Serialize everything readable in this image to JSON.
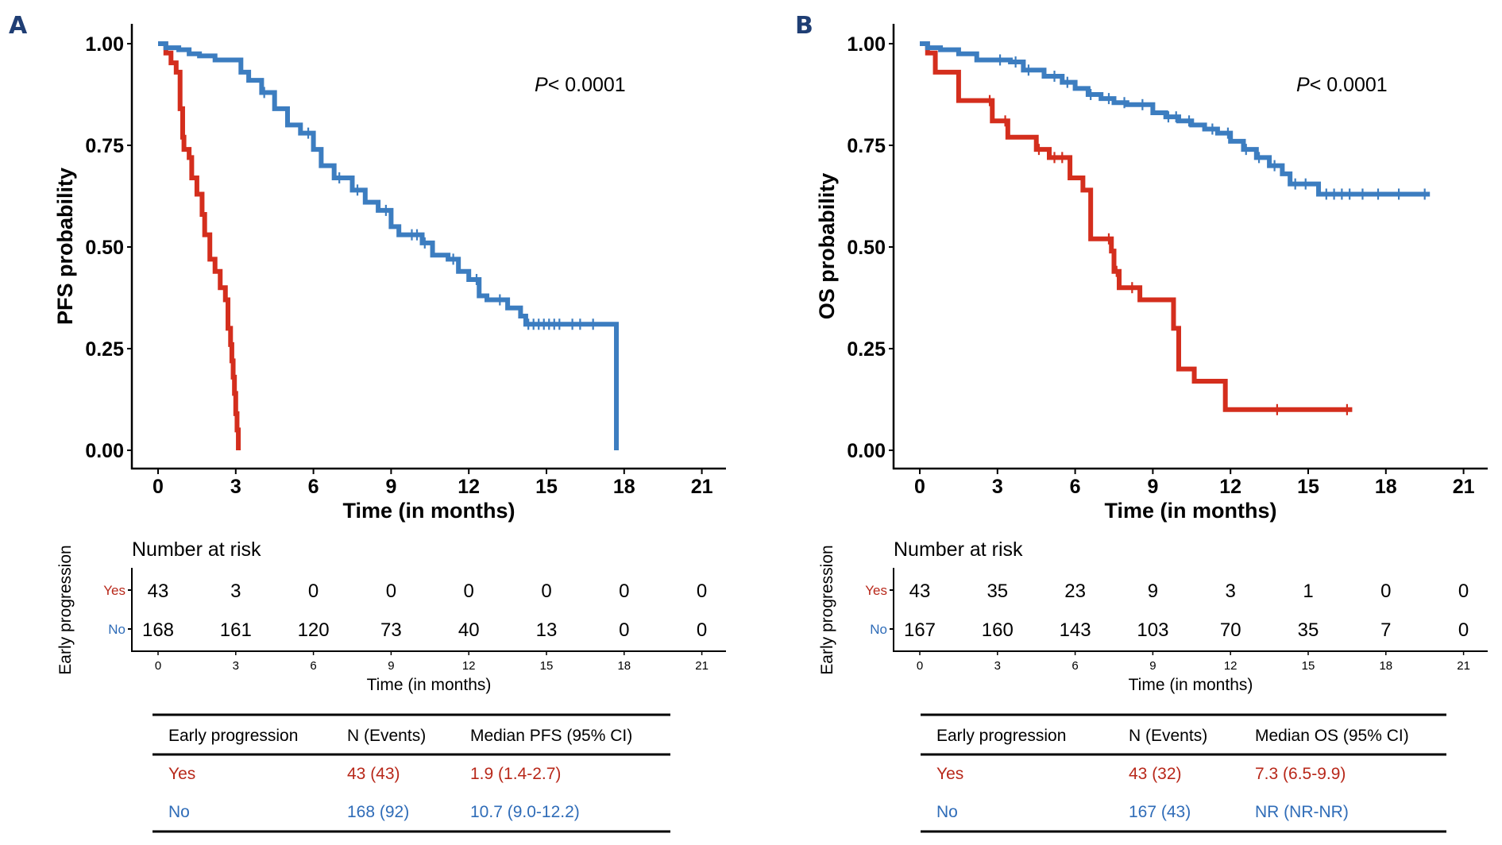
{
  "colors": {
    "yes": "#d42e1d",
    "no": "#3c7dc0",
    "yes_text": "#b8281a",
    "no_text": "#2f6cb8",
    "panel_letter": "#1f3e74"
  },
  "chart_data": [
    {
      "type": "line",
      "panel": "A",
      "title": "",
      "xlabel": "Time (in months)",
      "ylabel": "PFS probability",
      "xlim": [
        0,
        21
      ],
      "ylim": [
        0,
        1
      ],
      "xticks": [
        "0",
        "3",
        "6",
        "9",
        "12",
        "15",
        "18",
        "21"
      ],
      "yticks": [
        "0.00",
        "0.25",
        "0.50",
        "0.75",
        "1.00"
      ],
      "annotation": "P< 0.0001",
      "grid": false,
      "series": [
        {
          "name": "Yes",
          "step": true,
          "x": [
            0,
            0.3,
            0.5,
            0.7,
            0.85,
            0.95,
            1.0,
            1.2,
            1.3,
            1.5,
            1.7,
            1.8,
            2.0,
            2.2,
            2.4,
            2.6,
            2.7,
            2.8,
            2.85,
            2.9,
            2.95,
            3.0,
            3.05,
            3.1
          ],
          "y": [
            1.0,
            0.977,
            0.953,
            0.93,
            0.84,
            0.77,
            0.74,
            0.72,
            0.67,
            0.63,
            0.58,
            0.53,
            0.47,
            0.44,
            0.4,
            0.37,
            0.3,
            0.26,
            0.22,
            0.18,
            0.14,
            0.09,
            0.05,
            0.0
          ]
        },
        {
          "name": "No",
          "step": true,
          "x": [
            0,
            0.3,
            0.8,
            1.2,
            1.6,
            2.2,
            2.8,
            3.2,
            3.5,
            4.0,
            4.5,
            5.0,
            5.5,
            6.0,
            6.3,
            6.8,
            7.5,
            8.0,
            8.5,
            9.0,
            9.3,
            10.2,
            10.6,
            11.2,
            11.6,
            12.0,
            12.4,
            12.7,
            13.5,
            14.0,
            14.2,
            17.7,
            17.7
          ],
          "y": [
            1.0,
            0.99,
            0.985,
            0.975,
            0.97,
            0.96,
            0.96,
            0.93,
            0.91,
            0.88,
            0.84,
            0.8,
            0.78,
            0.74,
            0.7,
            0.67,
            0.64,
            0.61,
            0.59,
            0.55,
            0.53,
            0.51,
            0.48,
            0.47,
            0.44,
            0.42,
            0.38,
            0.37,
            0.35,
            0.33,
            0.31,
            0.31,
            0.0
          ]
        }
      ],
      "censor_marks": {
        "No": [
          4.1,
          5.8,
          7.0,
          7.7,
          8.8,
          9.8,
          10.0,
          10.3,
          11.4,
          12.3,
          13.2,
          14.3,
          14.5,
          14.7,
          14.9,
          15.1,
          15.3,
          15.5,
          16.0,
          16.3,
          16.8
        ]
      },
      "risk_table": {
        "title": "Number at risk",
        "ylabel": "Early progression",
        "xlabel": "Time (in months)",
        "time_points": [
          "0",
          "3",
          "6",
          "9",
          "12",
          "15",
          "18",
          "21"
        ],
        "rows": [
          {
            "label": "Yes",
            "values": [
              "43",
              "3",
              "0",
              "0",
              "0",
              "0",
              "0",
              "0"
            ]
          },
          {
            "label": "No",
            "values": [
              "168",
              "161",
              "120",
              "73",
              "40",
              "13",
              "0",
              "0"
            ]
          }
        ]
      },
      "summary_table": {
        "headers": [
          "Early progression",
          "N (Events)",
          "Median PFS (95% CI)"
        ],
        "rows": [
          {
            "group": "Yes",
            "n_events": "43 (43)",
            "median": "1.9 (1.4-2.7)"
          },
          {
            "group": "No",
            "n_events": "168 (92)",
            "median": "10.7 (9.0-12.2)"
          }
        ]
      }
    },
    {
      "type": "line",
      "panel": "B",
      "title": "",
      "xlabel": "Time (in months)",
      "ylabel": "OS probability",
      "xlim": [
        0,
        21
      ],
      "ylim": [
        0,
        1
      ],
      "xticks": [
        "0",
        "3",
        "6",
        "9",
        "12",
        "15",
        "18",
        "21"
      ],
      "yticks": [
        "0.00",
        "0.25",
        "0.50",
        "0.75",
        "1.00"
      ],
      "annotation": "P< 0.0001",
      "grid": false,
      "series": [
        {
          "name": "Yes",
          "step": true,
          "x": [
            0,
            0.3,
            0.6,
            1.5,
            2.8,
            3.4,
            4.5,
            5.0,
            5.8,
            6.3,
            6.6,
            7.4,
            7.5,
            7.7,
            8.5,
            9.8,
            10.0,
            10.6,
            11.8,
            16.7
          ],
          "y": [
            1.0,
            0.977,
            0.93,
            0.86,
            0.81,
            0.77,
            0.74,
            0.72,
            0.67,
            0.64,
            0.52,
            0.49,
            0.44,
            0.4,
            0.37,
            0.3,
            0.2,
            0.17,
            0.1,
            0.1
          ]
        },
        {
          "name": "No",
          "step": true,
          "x": [
            0,
            0.3,
            0.8,
            1.5,
            2.2,
            3.5,
            4.0,
            4.8,
            5.5,
            6.0,
            6.5,
            7.0,
            7.5,
            8.0,
            9.0,
            9.5,
            10.0,
            10.5,
            11.0,
            11.5,
            12.0,
            12.5,
            13.0,
            13.5,
            14.0,
            14.3,
            15.4,
            19.7
          ],
          "y": [
            1.0,
            0.99,
            0.985,
            0.975,
            0.96,
            0.955,
            0.935,
            0.92,
            0.905,
            0.89,
            0.875,
            0.865,
            0.855,
            0.85,
            0.83,
            0.82,
            0.81,
            0.8,
            0.79,
            0.78,
            0.76,
            0.74,
            0.72,
            0.7,
            0.68,
            0.655,
            0.63,
            0.63
          ]
        }
      ],
      "censor_marks": {
        "Yes": [
          2.7,
          3.3,
          4.6,
          5.2,
          5.5,
          7.3,
          7.6,
          8.2,
          13.8,
          16.5
        ],
        "No": [
          3.1,
          3.7,
          4.2,
          5.2,
          5.7,
          6.6,
          7.3,
          7.9,
          8.6,
          9.6,
          9.9,
          10.4,
          11.3,
          11.9,
          12.6,
          13.1,
          13.7,
          14.5,
          14.9,
          15.7,
          16.0,
          16.3,
          16.6,
          17.1,
          17.7,
          18.5,
          19.5
        ]
      },
      "risk_table": {
        "title": "Number at risk",
        "ylabel": "Early progression",
        "xlabel": "Time (in months)",
        "time_points": [
          "0",
          "3",
          "6",
          "9",
          "12",
          "15",
          "18",
          "21"
        ],
        "rows": [
          {
            "label": "Yes",
            "values": [
              "43",
              "35",
              "23",
              "9",
              "3",
              "1",
              "0",
              "0"
            ]
          },
          {
            "label": "No",
            "values": [
              "167",
              "160",
              "143",
              "103",
              "70",
              "35",
              "7",
              "0"
            ]
          }
        ]
      },
      "summary_table": {
        "headers": [
          "Early progression",
          "N (Events)",
          "Median OS (95% CI)"
        ],
        "rows": [
          {
            "group": "Yes",
            "n_events": "43 (32)",
            "median": "7.3 (6.5-9.9)"
          },
          {
            "group": "No",
            "n_events": "167 (43)",
            "median": "NR (NR-NR)"
          }
        ]
      }
    }
  ]
}
